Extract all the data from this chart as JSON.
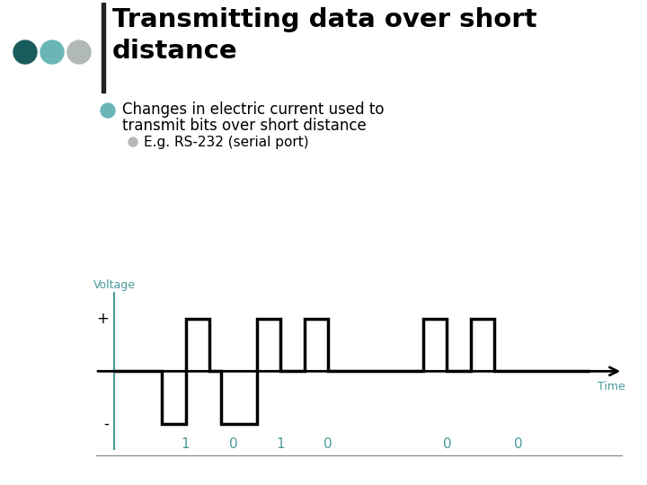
{
  "bg_color": "#ffffff",
  "title_line1": "Transmitting data over short",
  "title_line2": "distance",
  "bullet1_line1": "Changes in electric current used to",
  "bullet1_line2": "transmit bits over short distance",
  "bullet2": "E.g. RS-232 (serial port)",
  "voltage_label": "Voltage",
  "time_label": "Time",
  "plus_label": "+",
  "minus_label": "-",
  "bit_labels": [
    "1",
    "0",
    "1",
    "0",
    "0",
    "0"
  ],
  "bit_positions": [
    1.5,
    2.5,
    3.5,
    4.5,
    7.0,
    8.5
  ],
  "title_color": "#000000",
  "text_color": "#000000",
  "axis_color": "#4a9a9a",
  "waveform_color": "#000000",
  "dot_colors": [
    "#1a5c5c",
    "#6ab5b5",
    "#b0b8b8"
  ],
  "bullet1_dot_color": "#6ab5b5",
  "bullet2_dot_color": "#b8b8b8",
  "vbar_color": "#222222",
  "line_color": "#888888",
  "waveform_x": [
    0,
    1,
    1,
    1.5,
    1.5,
    2,
    2,
    2.25,
    2.25,
    3,
    3,
    3.5,
    3.5,
    4,
    4,
    4.5,
    4.5,
    6.5,
    6.5,
    7,
    7,
    7.5,
    7.5,
    8,
    8,
    8.75,
    8.75,
    10
  ],
  "waveform_y": [
    0,
    0,
    -1,
    -1,
    1,
    1,
    0,
    0,
    -1,
    -1,
    1,
    1,
    0,
    0,
    1,
    1,
    0,
    0,
    1,
    1,
    0,
    0,
    1,
    1,
    0,
    0,
    0,
    0
  ]
}
